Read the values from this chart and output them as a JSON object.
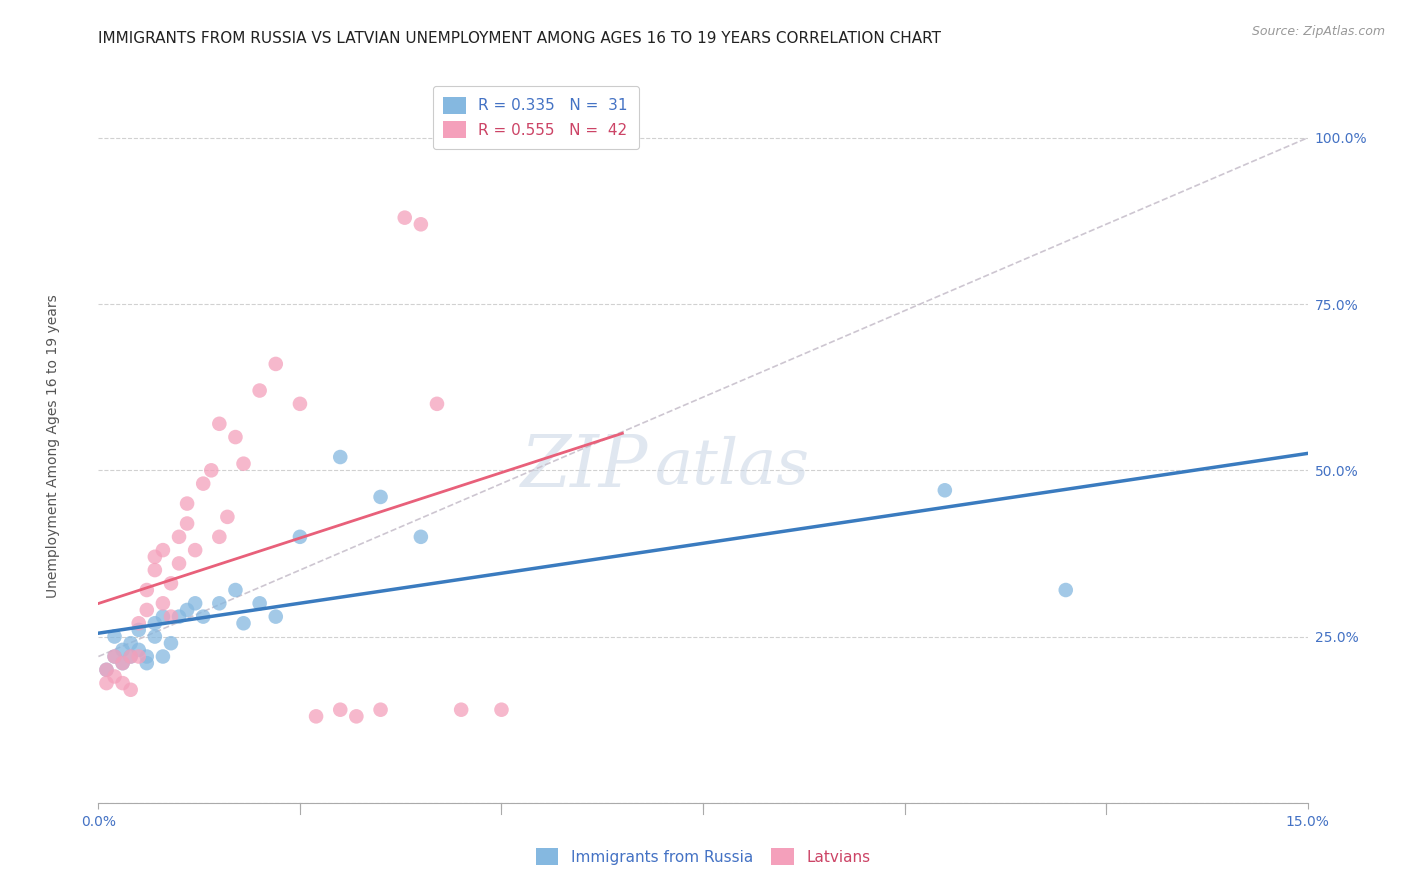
{
  "title": "IMMIGRANTS FROM RUSSIA VS LATVIAN UNEMPLOYMENT AMONG AGES 16 TO 19 YEARS CORRELATION CHART",
  "source": "Source: ZipAtlas.com",
  "ylabel": "Unemployment Among Ages 16 to 19 years",
  "xlim": [
    0.0,
    0.15
  ],
  "ylim": [
    0.0,
    1.1
  ],
  "yticks": [
    0.0,
    0.25,
    0.5,
    0.75,
    1.0
  ],
  "ytick_labels": [
    "",
    "25.0%",
    "50.0%",
    "75.0%",
    "100.0%"
  ],
  "watermark_text": "ZIPatlas",
  "blue_color": "#85b8e0",
  "pink_color": "#f4a0bb",
  "blue_line_color": "#3a7bbf",
  "pink_line_color": "#e8607a",
  "dashed_line_color": "#c8c0cc",
  "blue_scatter_x": [
    0.001,
    0.002,
    0.002,
    0.003,
    0.003,
    0.004,
    0.004,
    0.005,
    0.005,
    0.006,
    0.006,
    0.007,
    0.007,
    0.008,
    0.008,
    0.009,
    0.01,
    0.011,
    0.012,
    0.013,
    0.015,
    0.017,
    0.018,
    0.02,
    0.022,
    0.025,
    0.03,
    0.035,
    0.04,
    0.105,
    0.12
  ],
  "blue_scatter_y": [
    0.2,
    0.22,
    0.25,
    0.21,
    0.23,
    0.22,
    0.24,
    0.23,
    0.26,
    0.21,
    0.22,
    0.25,
    0.27,
    0.22,
    0.28,
    0.24,
    0.28,
    0.29,
    0.3,
    0.28,
    0.3,
    0.32,
    0.27,
    0.3,
    0.28,
    0.4,
    0.52,
    0.46,
    0.4,
    0.47,
    0.32
  ],
  "pink_scatter_x": [
    0.001,
    0.001,
    0.002,
    0.002,
    0.003,
    0.003,
    0.004,
    0.004,
    0.005,
    0.005,
    0.006,
    0.006,
    0.007,
    0.007,
    0.008,
    0.008,
    0.009,
    0.009,
    0.01,
    0.01,
    0.011,
    0.011,
    0.012,
    0.013,
    0.014,
    0.015,
    0.015,
    0.016,
    0.017,
    0.018,
    0.02,
    0.022,
    0.025,
    0.027,
    0.03,
    0.032,
    0.035,
    0.038,
    0.04,
    0.042,
    0.045,
    0.05
  ],
  "pink_scatter_y": [
    0.18,
    0.2,
    0.19,
    0.22,
    0.18,
    0.21,
    0.22,
    0.17,
    0.22,
    0.27,
    0.29,
    0.32,
    0.35,
    0.37,
    0.3,
    0.38,
    0.28,
    0.33,
    0.36,
    0.4,
    0.42,
    0.45,
    0.38,
    0.48,
    0.5,
    0.4,
    0.57,
    0.43,
    0.55,
    0.51,
    0.62,
    0.66,
    0.6,
    0.13,
    0.14,
    0.13,
    0.14,
    0.88,
    0.87,
    0.6,
    0.14,
    0.14
  ],
  "title_fontsize": 11,
  "source_fontsize": 9,
  "axis_label_fontsize": 10,
  "tick_fontsize": 10,
  "legend_fontsize": 11,
  "watermark_fontsize": 52
}
